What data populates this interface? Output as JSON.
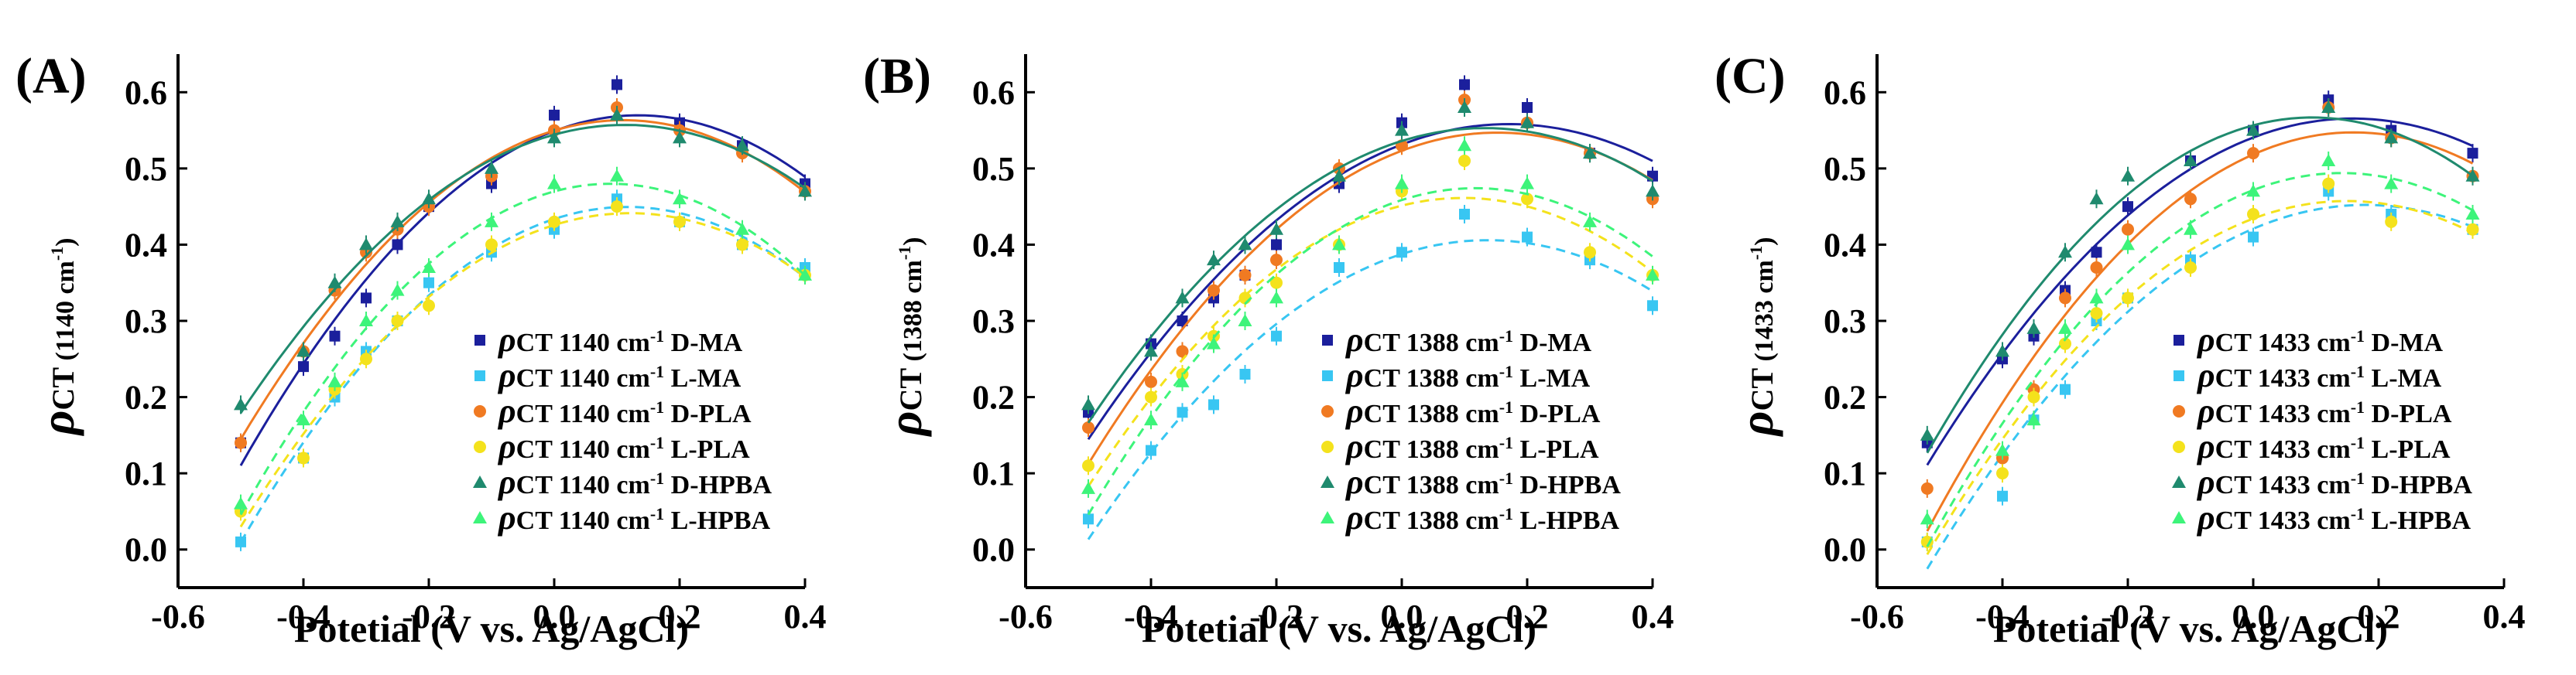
{
  "figure": {
    "xlabel": "Potetial (V vs. Ag/AgCl)",
    "series_style": [
      {
        "suffix": "D-MA",
        "color": "#1b1f9c",
        "marker": "square",
        "dashed": false
      },
      {
        "suffix": "L-MA",
        "color": "#38c6f2",
        "marker": "square",
        "dashed": true
      },
      {
        "suffix": "D-PLA",
        "color": "#f07a22",
        "marker": "circle",
        "dashed": false
      },
      {
        "suffix": "L-PLA",
        "color": "#f4e21c",
        "marker": "circle",
        "dashed": true
      },
      {
        "suffix": "D-HPBA",
        "color": "#1f8a6e",
        "marker": "triangle",
        "dashed": false
      },
      {
        "suffix": "L-HPBA",
        "color": "#3df47a",
        "marker": "triangle",
        "dashed": true
      }
    ]
  },
  "chart_data": [
    {
      "type": "scatter",
      "panel": "(A)",
      "ylabel_main": "ρ",
      "ylabel_sub": "CT",
      "ylabel_paren": "(1140 cm",
      "ylabel_sup": "-1",
      "ylabel_close": ")",
      "xlabel": "Potetial (V vs. Ag/AgCl)",
      "xlim": [
        -0.6,
        0.4
      ],
      "ylim": [
        -0.05,
        0.65
      ],
      "xticks": [
        "-0.6",
        "-0.4",
        "-0.2",
        "0.0",
        "0.2",
        "0.4"
      ],
      "xtick_values": [
        -0.6,
        -0.4,
        -0.2,
        0.0,
        0.2,
        0.4
      ],
      "yticks": [
        "0.0",
        "0.1",
        "0.2",
        "0.3",
        "0.4",
        "0.5",
        "0.6"
      ],
      "ytick_values": [
        0.0,
        0.1,
        0.2,
        0.3,
        0.4,
        0.5,
        0.6
      ],
      "legend_position": "bottom-right",
      "legend_prefix": "ρ",
      "legend_sub": "CT",
      "legend_wave": " 1140 cm",
      "legend_sup": "-1",
      "series": [
        {
          "name": "D-MA",
          "x": [
            -0.5,
            -0.4,
            -0.35,
            -0.3,
            -0.25,
            -0.2,
            -0.1,
            0.0,
            0.1,
            0.2,
            0.3,
            0.4
          ],
          "y": [
            0.14,
            0.24,
            0.28,
            0.33,
            0.4,
            0.45,
            0.48,
            0.57,
            0.61,
            0.56,
            0.53,
            0.48
          ]
        },
        {
          "name": "L-MA",
          "x": [
            -0.5,
            -0.4,
            -0.35,
            -0.3,
            -0.25,
            -0.2,
            -0.1,
            0.0,
            0.1,
            0.2,
            0.3,
            0.4
          ],
          "y": [
            0.01,
            0.12,
            0.2,
            0.26,
            0.3,
            0.35,
            0.39,
            0.42,
            0.46,
            0.43,
            0.4,
            0.37
          ]
        },
        {
          "name": "D-PLA",
          "x": [
            -0.5,
            -0.4,
            -0.35,
            -0.3,
            -0.25,
            -0.2,
            -0.1,
            0.0,
            0.1,
            0.2,
            0.3,
            0.4
          ],
          "y": [
            0.14,
            0.26,
            0.34,
            0.39,
            0.42,
            0.45,
            0.49,
            0.55,
            0.58,
            0.55,
            0.52,
            0.47
          ]
        },
        {
          "name": "L-PLA",
          "x": [
            -0.5,
            -0.4,
            -0.35,
            -0.3,
            -0.25,
            -0.2,
            -0.1,
            0.0,
            0.1,
            0.2,
            0.3,
            0.4
          ],
          "y": [
            0.05,
            0.12,
            0.21,
            0.25,
            0.3,
            0.32,
            0.4,
            0.43,
            0.45,
            0.43,
            0.4,
            0.36
          ]
        },
        {
          "name": "D-HPBA",
          "x": [
            -0.5,
            -0.4,
            -0.35,
            -0.3,
            -0.25,
            -0.2,
            -0.1,
            0.0,
            0.1,
            0.2,
            0.3,
            0.4
          ],
          "y": [
            0.19,
            0.26,
            0.35,
            0.4,
            0.43,
            0.46,
            0.5,
            0.54,
            0.57,
            0.54,
            0.53,
            0.47
          ]
        },
        {
          "name": "L-HPBA",
          "x": [
            -0.5,
            -0.4,
            -0.35,
            -0.3,
            -0.25,
            -0.2,
            -0.1,
            0.0,
            0.1,
            0.2,
            0.3,
            0.4
          ],
          "y": [
            0.06,
            0.17,
            0.22,
            0.3,
            0.34,
            0.37,
            0.43,
            0.48,
            0.49,
            0.46,
            0.42,
            0.36
          ]
        }
      ]
    },
    {
      "type": "scatter",
      "panel": "(B)",
      "ylabel_main": "ρ",
      "ylabel_sub": "CT",
      "ylabel_paren": "(1388 cm",
      "ylabel_sup": "-1",
      "ylabel_close": ")",
      "xlabel": "Potetial (V vs. Ag/AgCl)",
      "xlim": [
        -0.6,
        0.4
      ],
      "ylim": [
        -0.05,
        0.65
      ],
      "xticks": [
        "-0.6",
        "-0.4",
        "-0.2",
        "0.0",
        "0.2",
        "0.4"
      ],
      "xtick_values": [
        -0.6,
        -0.4,
        -0.2,
        0.0,
        0.2,
        0.4
      ],
      "yticks": [
        "0.0",
        "0.1",
        "0.2",
        "0.3",
        "0.4",
        "0.5",
        "0.6"
      ],
      "ytick_values": [
        0.0,
        0.1,
        0.2,
        0.3,
        0.4,
        0.5,
        0.6
      ],
      "legend_position": "bottom-right",
      "legend_prefix": "ρ",
      "legend_sub": "CT",
      "legend_wave": " 1388 cm",
      "legend_sup": "-1",
      "series": [
        {
          "name": "D-MA",
          "x": [
            -0.5,
            -0.4,
            -0.35,
            -0.3,
            -0.25,
            -0.2,
            -0.1,
            0.0,
            0.1,
            0.2,
            0.3,
            0.4
          ],
          "y": [
            0.18,
            0.27,
            0.3,
            0.33,
            0.36,
            0.4,
            0.48,
            0.56,
            0.61,
            0.58,
            0.52,
            0.49
          ]
        },
        {
          "name": "L-MA",
          "x": [
            -0.5,
            -0.4,
            -0.35,
            -0.3,
            -0.25,
            -0.2,
            -0.1,
            0.0,
            0.1,
            0.2,
            0.3,
            0.4
          ],
          "y": [
            0.04,
            0.13,
            0.18,
            0.19,
            0.23,
            0.28,
            0.37,
            0.39,
            0.44,
            0.41,
            0.38,
            0.32
          ]
        },
        {
          "name": "D-PLA",
          "x": [
            -0.5,
            -0.4,
            -0.35,
            -0.3,
            -0.25,
            -0.2,
            -0.1,
            0.0,
            0.1,
            0.2,
            0.3,
            0.4
          ],
          "y": [
            0.16,
            0.22,
            0.26,
            0.34,
            0.36,
            0.38,
            0.5,
            0.53,
            0.59,
            0.56,
            0.52,
            0.46
          ]
        },
        {
          "name": "L-PLA",
          "x": [
            -0.5,
            -0.4,
            -0.35,
            -0.3,
            -0.25,
            -0.2,
            -0.1,
            0.0,
            0.1,
            0.2,
            0.3,
            0.4
          ],
          "y": [
            0.11,
            0.2,
            0.23,
            0.28,
            0.33,
            0.35,
            0.4,
            0.47,
            0.51,
            0.46,
            0.39,
            0.36
          ]
        },
        {
          "name": "D-HPBA",
          "x": [
            -0.5,
            -0.4,
            -0.35,
            -0.3,
            -0.25,
            -0.2,
            -0.1,
            0.0,
            0.1,
            0.2,
            0.3,
            0.4
          ],
          "y": [
            0.19,
            0.26,
            0.33,
            0.38,
            0.4,
            0.42,
            0.49,
            0.55,
            0.58,
            0.56,
            0.52,
            0.47
          ]
        },
        {
          "name": "L-HPBA",
          "x": [
            -0.5,
            -0.4,
            -0.35,
            -0.3,
            -0.25,
            -0.2,
            -0.1,
            0.0,
            0.1,
            0.2,
            0.3,
            0.4
          ],
          "y": [
            0.08,
            0.17,
            0.22,
            0.27,
            0.3,
            0.33,
            0.4,
            0.48,
            0.53,
            0.48,
            0.43,
            0.36
          ]
        }
      ]
    },
    {
      "type": "scatter",
      "panel": "(C)",
      "ylabel_main": "ρ",
      "ylabel_sub": "CT",
      "ylabel_paren": "(1433 cm",
      "ylabel_sup": "-1",
      "ylabel_close": ")",
      "xlabel": "Potetial (V vs. Ag/AgCl)",
      "xlim": [
        -0.6,
        0.4
      ],
      "ylim": [
        -0.05,
        0.65
      ],
      "xticks": [
        "-0.6",
        "-0.4",
        "-0.2",
        "0.0",
        "0.2",
        "0.4"
      ],
      "xtick_values": [
        -0.6,
        -0.4,
        -0.2,
        0.0,
        0.2,
        0.4
      ],
      "yticks": [
        "0.0",
        "0.1",
        "0.2",
        "0.3",
        "0.4",
        "0.5",
        "0.6"
      ],
      "ytick_values": [
        0.0,
        0.1,
        0.2,
        0.3,
        0.4,
        0.5,
        0.6
      ],
      "legend_position": "bottom-right",
      "legend_prefix": "ρ",
      "legend_sub": "CT",
      "legend_wave": " 1433 cm",
      "legend_sup": "-1",
      "series": [
        {
          "name": "D-MA",
          "x": [
            -0.52,
            -0.4,
            -0.35,
            -0.3,
            -0.25,
            -0.2,
            -0.1,
            0.0,
            0.12,
            0.22,
            0.35
          ],
          "y": [
            0.14,
            0.25,
            0.28,
            0.34,
            0.39,
            0.45,
            0.51,
            0.55,
            0.59,
            0.55,
            0.52
          ]
        },
        {
          "name": "L-MA",
          "x": [
            -0.52,
            -0.4,
            -0.35,
            -0.3,
            -0.25,
            -0.2,
            -0.1,
            0.0,
            0.12,
            0.22,
            0.35
          ],
          "y": [
            0.01,
            0.07,
            0.17,
            0.21,
            0.3,
            0.33,
            0.38,
            0.41,
            0.47,
            0.44,
            0.42
          ]
        },
        {
          "name": "D-PLA",
          "x": [
            -0.52,
            -0.4,
            -0.35,
            -0.3,
            -0.25,
            -0.2,
            -0.1,
            0.0,
            0.12,
            0.22,
            0.35
          ],
          "y": [
            0.08,
            0.12,
            0.21,
            0.33,
            0.37,
            0.42,
            0.46,
            0.52,
            0.58,
            0.54,
            0.49
          ]
        },
        {
          "name": "L-PLA",
          "x": [
            -0.52,
            -0.4,
            -0.35,
            -0.3,
            -0.25,
            -0.2,
            -0.1,
            0.0,
            0.12,
            0.22,
            0.35
          ],
          "y": [
            0.01,
            0.1,
            0.2,
            0.27,
            0.31,
            0.33,
            0.37,
            0.44,
            0.48,
            0.43,
            0.42
          ]
        },
        {
          "name": "D-HPBA",
          "x": [
            -0.52,
            -0.4,
            -0.35,
            -0.3,
            -0.25,
            -0.2,
            -0.1,
            0.0,
            0.12,
            0.22,
            0.35
          ],
          "y": [
            0.15,
            0.26,
            0.29,
            0.39,
            0.46,
            0.49,
            0.51,
            0.55,
            0.58,
            0.54,
            0.49
          ]
        },
        {
          "name": "L-HPBA",
          "x": [
            -0.52,
            -0.4,
            -0.35,
            -0.3,
            -0.25,
            -0.2,
            -0.1,
            0.0,
            0.12,
            0.22,
            0.35
          ],
          "y": [
            0.04,
            0.13,
            0.17,
            0.29,
            0.33,
            0.4,
            0.42,
            0.47,
            0.51,
            0.48,
            0.44
          ]
        }
      ]
    }
  ]
}
